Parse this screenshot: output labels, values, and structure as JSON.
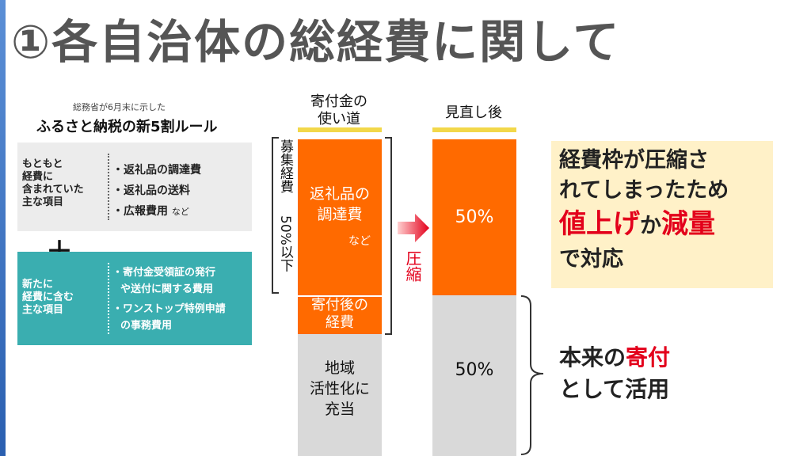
{
  "title": "①各自治体の総経費に関して",
  "left_panel": {
    "caption": "総務省が6月末に示した",
    "heading": "ふるさと納税の新5割ルール",
    "box1": {
      "label_lines": [
        "もともと",
        "経費に",
        "含まれていた",
        "主な項目"
      ],
      "items": [
        "・返礼品の調達費",
        "・返礼品の送料",
        "・広報費用",
        "など"
      ]
    },
    "plus": "＋",
    "box2": {
      "label_lines": [
        "新たに",
        "経費に含む",
        "主な項目"
      ],
      "items": [
        "・寄付金受領証の発行",
        "や送付に関する費用",
        "・ワンストップ特例申請",
        "の事務費用"
      ]
    }
  },
  "chart": {
    "col1_header": [
      "寄付金の",
      "使い道"
    ],
    "col2_header": "見直し後",
    "bracket_label_v": "募集経費",
    "bracket_label_pct": "50%以下",
    "seg_a_lines": [
      "返礼品の",
      "調達費"
    ],
    "seg_a_sub": "など",
    "seg_b_lines": [
      "寄付後の",
      "経費"
    ],
    "seg_c_lines": [
      "地域",
      "活性化に",
      "充当"
    ],
    "arrow_label": "圧縮",
    "col2_top_pct": "50%",
    "col2_bottom_pct": "50%"
  },
  "callout": {
    "line1": "経費枠が圧縮さ",
    "line2": "れてしまったため",
    "w1": "値上げ",
    "w2": "か",
    "w3": "減量",
    "line4": "で対応"
  },
  "bottom_note": {
    "p1": "本来の",
    "p2": "寄付",
    "line2": "として活用"
  },
  "colors": {
    "orange": "#ff6a00",
    "gray": "#d9d9d9",
    "teal": "#3aaeb0",
    "red": "#e3001b",
    "cream": "#fff1c8"
  }
}
